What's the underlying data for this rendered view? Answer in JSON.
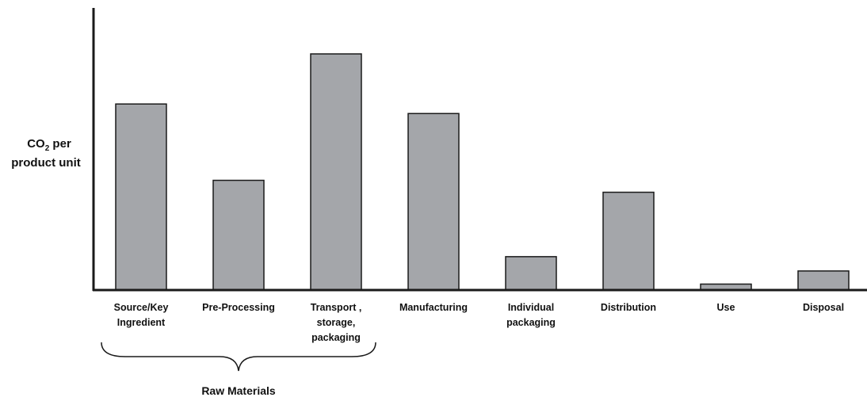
{
  "chart_data": {
    "type": "bar",
    "title": "",
    "xlabel": "",
    "ylabel_main": "CO",
    "ylabel_sub": "2",
    "ylabel_rest": " per",
    "ylabel_line2": "product unit",
    "categories": [
      [
        "Source/Key",
        "Ingredient"
      ],
      [
        "Pre-Processing"
      ],
      [
        "Transport ,",
        "storage,",
        "packaging"
      ],
      [
        "Manufacturing"
      ],
      [
        "Individual",
        "packaging"
      ],
      [
        "Distribution"
      ],
      [
        "Use"
      ],
      [
        "Disposal"
      ]
    ],
    "values": [
      78,
      46,
      99,
      74,
      14,
      41,
      2.5,
      8
    ],
    "ylim": [
      0,
      100
    ],
    "grid": false,
    "group": {
      "label": "Raw Materials",
      "from_index": 0,
      "to_index": 2
    },
    "colors": {
      "bar": "#a4a6aa",
      "stroke": "#1a1a1a"
    }
  }
}
